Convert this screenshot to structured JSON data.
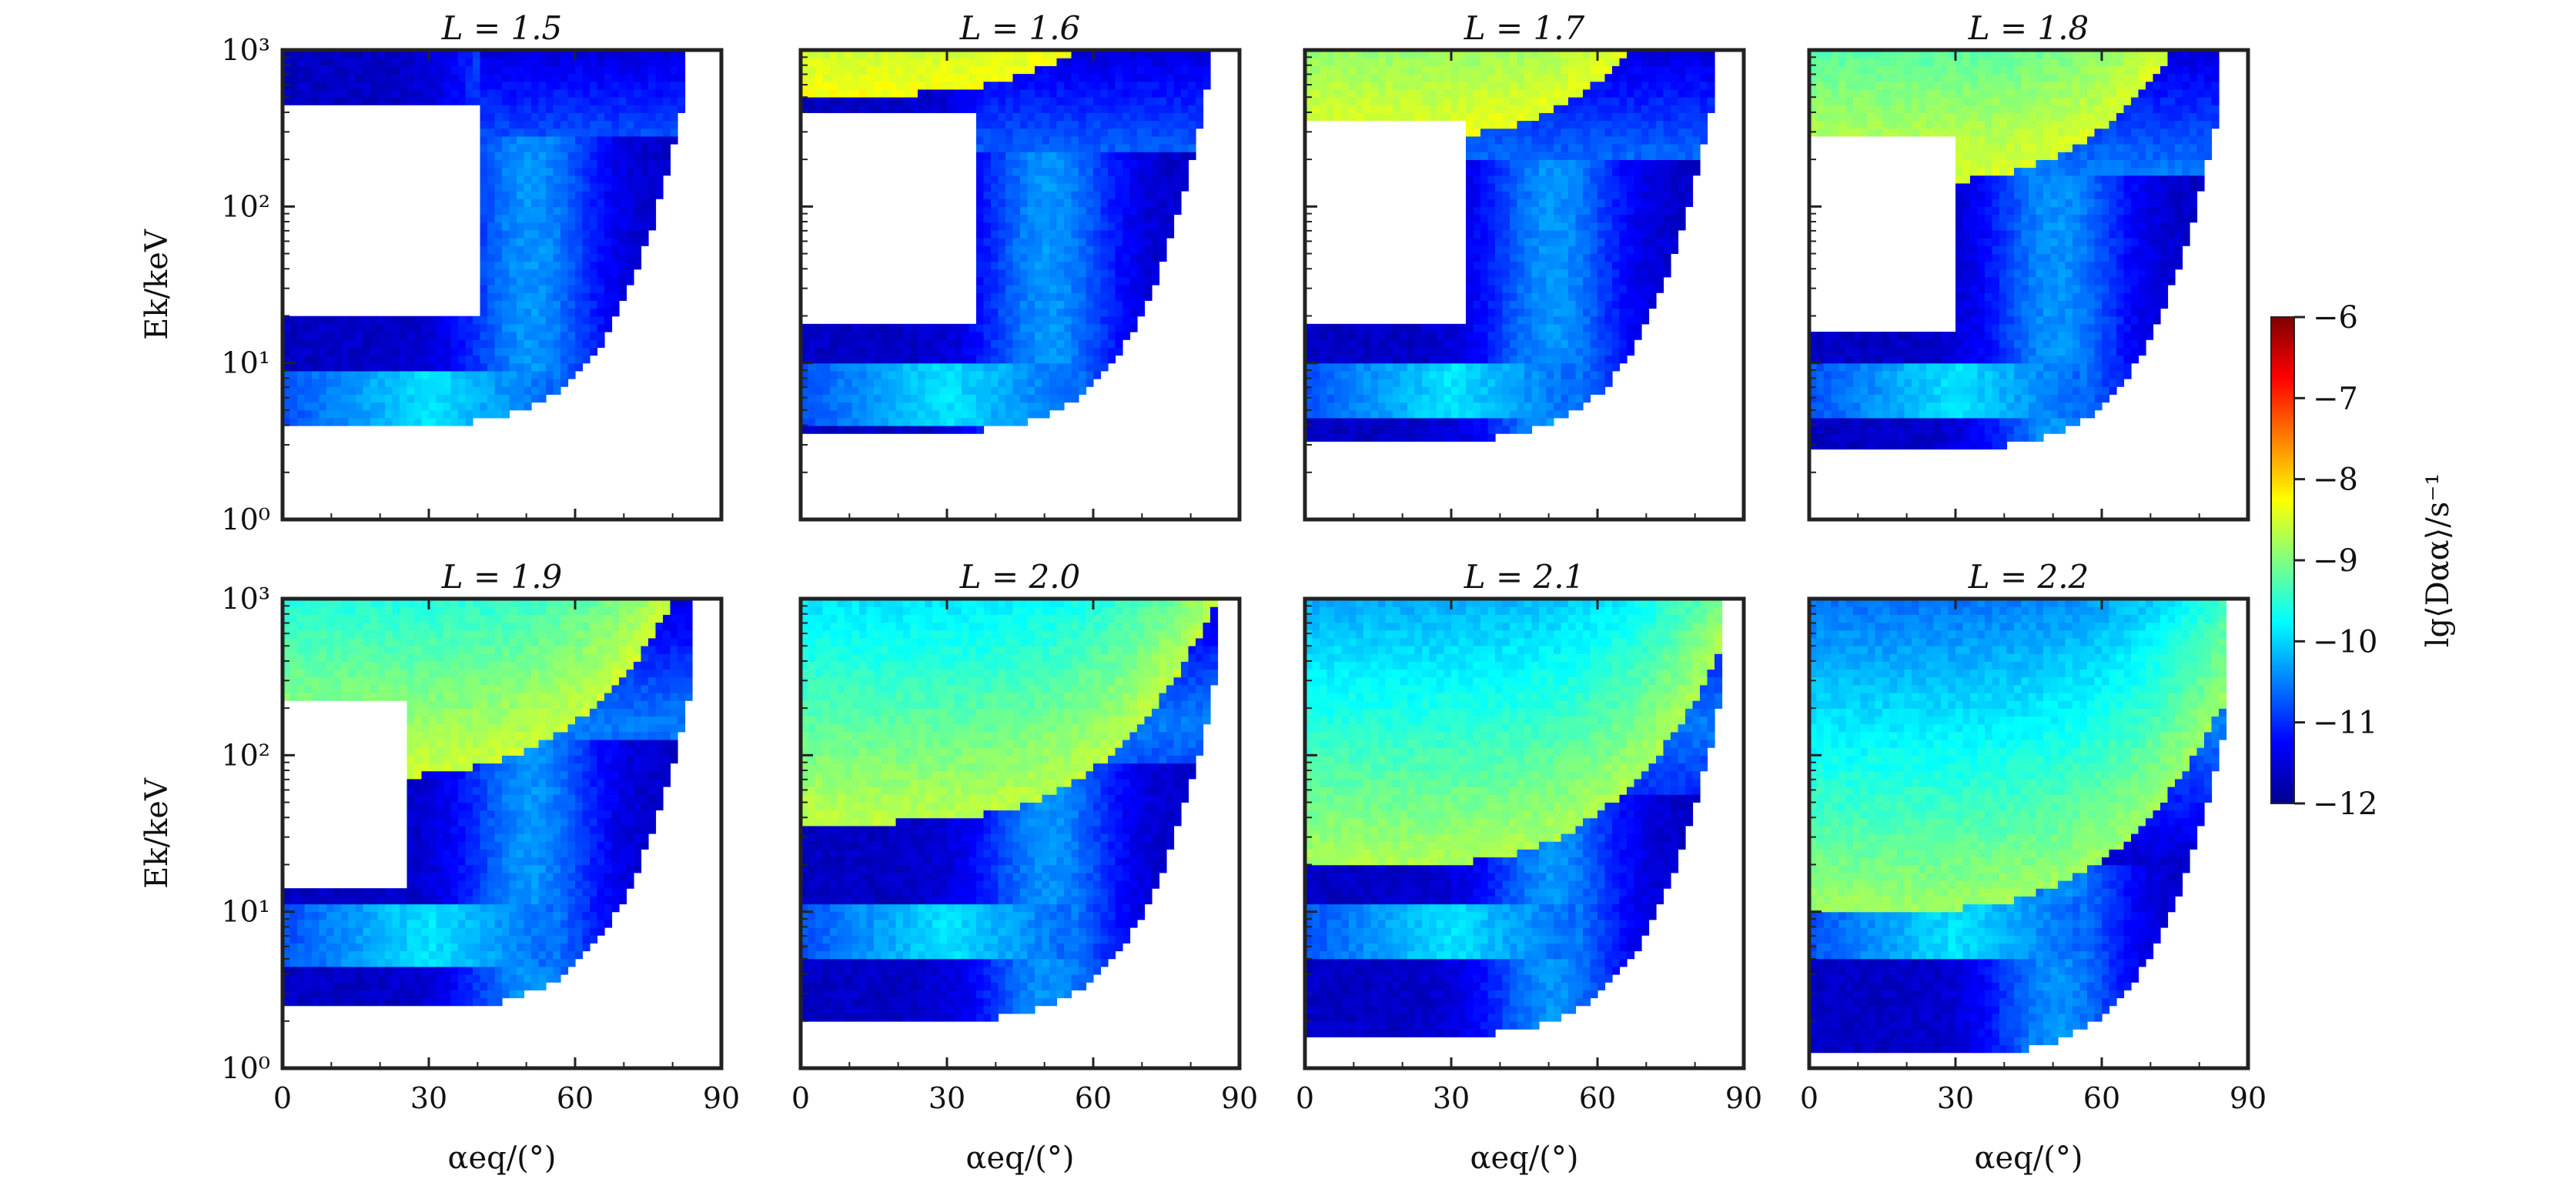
{
  "chart_data": {
    "type": "heatmap",
    "panels": [
      {
        "title": "L = 1.5",
        "L": 1.5
      },
      {
        "title": "L = 1.6",
        "L": 1.6
      },
      {
        "title": "L = 1.7",
        "L": 1.7
      },
      {
        "title": "L = 1.8",
        "L": 1.8
      },
      {
        "title": "L = 1.9",
        "L": 1.9
      },
      {
        "title": "L = 2.0",
        "L": 2.0
      },
      {
        "title": "L = 2.1",
        "L": 2.1
      },
      {
        "title": "L = 2.2",
        "L": 2.2
      }
    ],
    "xlabel": "αeq/(°)",
    "ylabel": "Ek/keV",
    "xlim": [
      0,
      90
    ],
    "ylim": [
      1,
      1000
    ],
    "yscale": "log",
    "xticks": [
      "0",
      "30",
      "60",
      "90"
    ],
    "yticks": [
      "10⁰",
      "10¹",
      "10²",
      "10³"
    ],
    "colorbar": {
      "label": "lg⟨Dαα⟩/s⁻¹",
      "range": [
        -12,
        -6
      ],
      "ticks": [
        "−6",
        "−7",
        "−8",
        "−9",
        "−10",
        "−11",
        "−12"
      ],
      "colormap": "jet"
    },
    "grid": false
  }
}
